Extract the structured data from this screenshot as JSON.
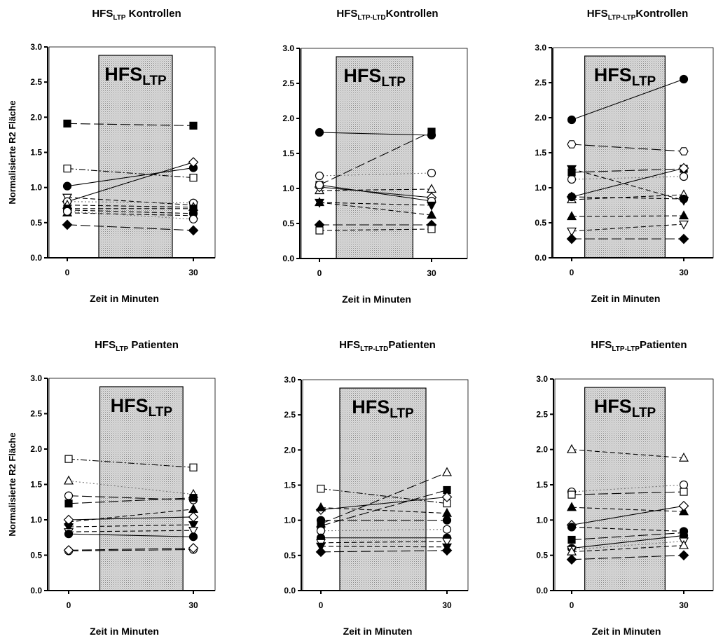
{
  "chart_data": [
    {
      "type": "line",
      "title_main": "HFS",
      "title_sub": "LTP",
      "title_rest": " Kontrollen",
      "xlabel": "Zeit in Minuten",
      "ylabel": "Normalisierte R2 Fläche",
      "ylim": [
        0,
        3.0
      ],
      "x": [
        0,
        30
      ],
      "xticks": [
        "0",
        "30"
      ],
      "yticks": [
        "0.0",
        "0.5",
        "1.0",
        "1.5",
        "2.0",
        "2.5",
        "3.0"
      ],
      "stim_main": "HFS",
      "stim_sub": "LTP",
      "stim_range": [
        7.5,
        25
      ],
      "series": [
        {
          "marker": "square",
          "filled": true,
          "dash": "longdash",
          "values": [
            1.91,
            1.88
          ]
        },
        {
          "marker": "square",
          "filled": false,
          "dash": "dashdot",
          "values": [
            1.27,
            1.14
          ]
        },
        {
          "marker": "circle",
          "filled": true,
          "dash": "solid",
          "values": [
            1.02,
            1.28
          ]
        },
        {
          "marker": "diamond",
          "filled": false,
          "dash": "solid",
          "values": [
            0.8,
            1.36
          ]
        },
        {
          "marker": "triangle-down",
          "filled": false,
          "dash": "dashed",
          "values": [
            0.86,
            0.75
          ]
        },
        {
          "marker": "circle",
          "filled": false,
          "dash": "dotted",
          "values": [
            0.8,
            0.78
          ]
        },
        {
          "marker": "triangle",
          "filled": false,
          "dash": "dashed",
          "values": [
            0.75,
            0.72
          ]
        },
        {
          "marker": "square",
          "filled": true,
          "dash": "dashed",
          "values": [
            0.7,
            0.7
          ]
        },
        {
          "marker": "circle",
          "filled": true,
          "dash": "dashed",
          "values": [
            0.68,
            0.63
          ]
        },
        {
          "marker": "triangle",
          "filled": true,
          "dash": "dashed",
          "values": [
            0.64,
            0.6
          ]
        },
        {
          "marker": "circle",
          "filled": false,
          "dash": "dotted",
          "values": [
            0.66,
            0.55
          ]
        },
        {
          "marker": "diamond",
          "filled": true,
          "dash": "longdash",
          "values": [
            0.47,
            0.39
          ]
        }
      ]
    },
    {
      "type": "line",
      "title_main": "HFS",
      "title_sub": "LTP-LTD",
      "title_rest": "Kontrollen",
      "xlabel": "Zeit in Minuten",
      "ylabel": "",
      "ylim": [
        0,
        3.0
      ],
      "x": [
        0,
        30
      ],
      "xticks": [
        "0",
        "30"
      ],
      "yticks": [
        "0.0",
        "0.5",
        "1.0",
        "1.5",
        "2.0",
        "2.5",
        "3.0"
      ],
      "stim_main": "HFS",
      "stim_sub": "LTP",
      "stim_range": [
        4.5,
        25
      ],
      "series": [
        {
          "marker": "circle",
          "filled": true,
          "dash": "solid",
          "values": [
            1.8,
            1.76
          ]
        },
        {
          "marker": "square",
          "filled": true,
          "dash": "longdash",
          "values": [
            1.05,
            1.81
          ]
        },
        {
          "marker": "circle",
          "filled": false,
          "dash": "dotted",
          "values": [
            1.18,
            1.22
          ]
        },
        {
          "marker": "triangle",
          "filled": false,
          "dash": "dashed",
          "values": [
            0.97,
            0.99
          ]
        },
        {
          "marker": "diamond",
          "filled": false,
          "dash": "solid",
          "values": [
            1.02,
            0.87
          ]
        },
        {
          "marker": "circle",
          "filled": false,
          "dash": "solid",
          "values": [
            1.05,
            0.82
          ]
        },
        {
          "marker": "triangle-down",
          "filled": true,
          "dash": "dashed",
          "values": [
            0.8,
            0.76
          ]
        },
        {
          "marker": "triangle",
          "filled": true,
          "dash": "dashed",
          "values": [
            0.8,
            0.62
          ]
        },
        {
          "marker": "diamond",
          "filled": true,
          "dash": "longdash",
          "values": [
            0.48,
            0.48
          ]
        },
        {
          "marker": "square",
          "filled": false,
          "dash": "dashed",
          "values": [
            0.4,
            0.42
          ]
        }
      ]
    },
    {
      "type": "line",
      "title_main": "HFS",
      "title_sub": "LTP-LTP",
      "title_rest": "Kontrollen",
      "xlabel": "Zeit in Minuten",
      "ylabel": "",
      "ylim": [
        0,
        3.0
      ],
      "x": [
        0,
        30
      ],
      "xticks": [
        "0",
        "30"
      ],
      "yticks": [
        "0.0",
        "0.5",
        "1.0",
        "1.5",
        "2.0",
        "2.5",
        "3.0"
      ],
      "stim_main": "HFS",
      "stim_sub": "LTP",
      "stim_range": [
        3.5,
        25
      ],
      "series": [
        {
          "marker": "circle",
          "filled": true,
          "dash": "solid",
          "values": [
            1.97,
            2.55
          ]
        },
        {
          "marker": "hexagon",
          "filled": false,
          "dash": "longdash",
          "values": [
            1.62,
            1.52
          ]
        },
        {
          "marker": "circle",
          "filled": false,
          "dash": "dotted",
          "values": [
            1.12,
            1.16
          ]
        },
        {
          "marker": "square",
          "filled": true,
          "dash": "longdash",
          "values": [
            1.22,
            1.27
          ]
        },
        {
          "marker": "triangle-down",
          "filled": true,
          "dash": "dashed",
          "values": [
            1.27,
            0.82
          ]
        },
        {
          "marker": "diamond",
          "filled": false,
          "dash": "solid",
          "values": [
            0.87,
            1.28
          ]
        },
        {
          "marker": "triangle",
          "filled": false,
          "dash": "dashed",
          "values": [
            0.83,
            0.9
          ]
        },
        {
          "marker": "circle",
          "filled": true,
          "dash": "dashed",
          "values": [
            0.87,
            0.84
          ]
        },
        {
          "marker": "triangle",
          "filled": true,
          "dash": "dashed",
          "values": [
            0.59,
            0.6
          ]
        },
        {
          "marker": "triangle-down",
          "filled": false,
          "dash": "dashed",
          "values": [
            0.38,
            0.48
          ]
        },
        {
          "marker": "diamond",
          "filled": true,
          "dash": "longdash",
          "values": [
            0.27,
            0.27
          ]
        }
      ]
    },
    {
      "type": "line",
      "title_main": "HFS",
      "title_sub": "LTP",
      "title_rest": " Patienten",
      "xlabel": "Zeit in Minuten",
      "ylabel": "Normalisierte R2 Fläche",
      "ylim": [
        0,
        3.0
      ],
      "x": [
        0,
        30
      ],
      "xticks": [
        "0",
        "30"
      ],
      "yticks": [
        "0.0",
        "0.5",
        "1.0",
        "1.5",
        "2.0",
        "2.5",
        "3.0"
      ],
      "stim_main": "HFS",
      "stim_sub": "LTP",
      "stim_range": [
        7.5,
        27.5
      ],
      "series": [
        {
          "marker": "square",
          "filled": false,
          "dash": "dashdot",
          "values": [
            1.86,
            1.74
          ]
        },
        {
          "marker": "triangle",
          "filled": false,
          "dash": "dotted",
          "values": [
            1.55,
            1.36
          ]
        },
        {
          "marker": "circle",
          "filled": false,
          "dash": "longdash",
          "values": [
            1.34,
            1.28
          ]
        },
        {
          "marker": "square",
          "filled": true,
          "dash": "longdash",
          "values": [
            1.23,
            1.31
          ]
        },
        {
          "marker": "triangle",
          "filled": true,
          "dash": "dashed",
          "values": [
            0.97,
            1.15
          ]
        },
        {
          "marker": "diamond",
          "filled": false,
          "dash": "solid",
          "values": [
            1.0,
            1.04
          ]
        },
        {
          "marker": "triangle-down",
          "filled": true,
          "dash": "dashed",
          "values": [
            0.9,
            0.93
          ]
        },
        {
          "marker": "triangle-down",
          "filled": false,
          "dash": "dashed",
          "values": [
            0.83,
            0.85
          ]
        },
        {
          "marker": "circle",
          "filled": true,
          "dash": "solid",
          "values": [
            0.8,
            0.76
          ]
        },
        {
          "marker": "circle",
          "filled": false,
          "dash": "longdash",
          "values": [
            0.56,
            0.58
          ]
        },
        {
          "marker": "diamond",
          "filled": false,
          "dash": "longdash",
          "values": [
            0.57,
            0.6
          ]
        }
      ]
    },
    {
      "type": "line",
      "title_main": "HFS",
      "title_sub": "LTP-LTD",
      "title_rest": "Patienten",
      "xlabel": "Zeit in Minuten",
      "ylabel": "",
      "ylim": [
        0,
        3.0
      ],
      "x": [
        0,
        30
      ],
      "xticks": [
        "0",
        "30"
      ],
      "yticks": [
        "0.0",
        "0.5",
        "1.0",
        "1.5",
        "2.0",
        "2.5",
        "3.0"
      ],
      "stim_main": "HFS",
      "stim_sub": "LTP",
      "stim_range": [
        4.5,
        25
      ],
      "series": [
        {
          "marker": "square",
          "filled": false,
          "dash": "dashdot",
          "values": [
            1.45,
            1.24
          ]
        },
        {
          "marker": "triangle",
          "filled": false,
          "dash": "longdash",
          "values": [
            0.95,
            1.68
          ]
        },
        {
          "marker": "square",
          "filled": true,
          "dash": "longdash",
          "values": [
            0.92,
            1.43
          ]
        },
        {
          "marker": "diamond",
          "filled": false,
          "dash": "solid",
          "values": [
            1.15,
            1.33
          ]
        },
        {
          "marker": "triangle",
          "filled": true,
          "dash": "dashed",
          "values": [
            1.18,
            1.1
          ]
        },
        {
          "marker": "circle",
          "filled": true,
          "dash": "longdash",
          "values": [
            1.0,
            1.0
          ]
        },
        {
          "marker": "circle",
          "filled": false,
          "dash": "dotted",
          "values": [
            0.85,
            0.87
          ]
        },
        {
          "marker": "circle",
          "filled": true,
          "dash": "solid",
          "values": [
            0.75,
            0.75
          ]
        },
        {
          "marker": "triangle-down",
          "filled": false,
          "dash": "dashed",
          "values": [
            0.68,
            0.7
          ]
        },
        {
          "marker": "triangle-down",
          "filled": true,
          "dash": "dashed",
          "values": [
            0.63,
            0.62
          ]
        },
        {
          "marker": "diamond",
          "filled": true,
          "dash": "longdash",
          "values": [
            0.55,
            0.57
          ]
        }
      ]
    },
    {
      "type": "line",
      "title_main": "HFS",
      "title_sub": "LTP-LTP",
      "title_rest": "Patienten",
      "xlabel": "Zeit in Minuten",
      "ylabel": "",
      "ylim": [
        0,
        3.0
      ],
      "x": [
        0,
        30
      ],
      "xticks": [
        "0",
        "30"
      ],
      "yticks": [
        "0.0",
        "0.5",
        "1.0",
        "1.5",
        "2.0",
        "2.5",
        "3.0"
      ],
      "stim_main": "HFS",
      "stim_sub": "LTP",
      "stim_range": [
        3.5,
        25
      ],
      "series": [
        {
          "marker": "triangle",
          "filled": false,
          "dash": "dashed",
          "values": [
            2.0,
            1.88
          ]
        },
        {
          "marker": "circle",
          "filled": false,
          "dash": "dotted",
          "values": [
            1.4,
            1.5
          ]
        },
        {
          "marker": "square",
          "filled": false,
          "dash": "longdash",
          "values": [
            1.36,
            1.4
          ]
        },
        {
          "marker": "triangle",
          "filled": true,
          "dash": "dashed",
          "values": [
            1.18,
            1.12
          ]
        },
        {
          "marker": "diamond",
          "filled": false,
          "dash": "solid",
          "values": [
            0.93,
            1.2
          ]
        },
        {
          "marker": "circle",
          "filled": true,
          "dash": "dashed",
          "values": [
            0.9,
            0.84
          ]
        },
        {
          "marker": "square",
          "filled": true,
          "dash": "longdash",
          "values": [
            0.72,
            0.82
          ]
        },
        {
          "marker": "circle",
          "filled": true,
          "dash": "solid",
          "values": [
            0.6,
            0.78
          ]
        },
        {
          "marker": "triangle-down",
          "filled": false,
          "dash": "dotted",
          "values": [
            0.58,
            0.7
          ]
        },
        {
          "marker": "triangle",
          "filled": false,
          "dash": "dashed",
          "values": [
            0.55,
            0.64
          ]
        },
        {
          "marker": "diamond",
          "filled": true,
          "dash": "longdash",
          "values": [
            0.44,
            0.5
          ]
        }
      ]
    }
  ]
}
